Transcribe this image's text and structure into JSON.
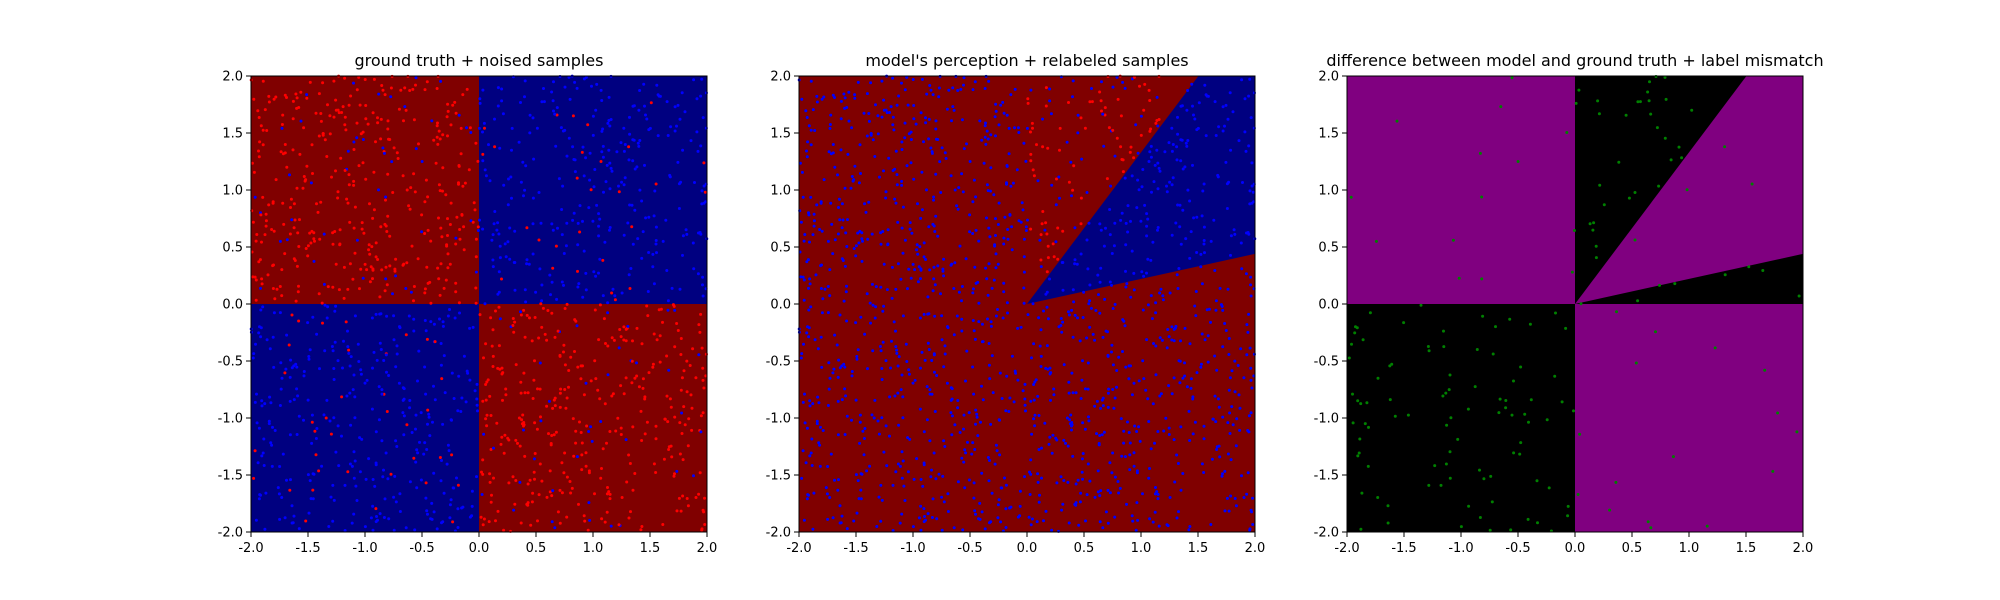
{
  "chart_data": [
    {
      "type": "scatter",
      "title": "ground truth + noised samples",
      "xlim": [
        -2.0,
        2.0
      ],
      "ylim": [
        -2.0,
        2.0
      ],
      "xticks": [
        "-2.0",
        "-1.5",
        "-1.0",
        "-0.5",
        "0.0",
        "0.5",
        "1.0",
        "1.5",
        "2.0"
      ],
      "yticks": [
        "-2.0",
        "-1.5",
        "-1.0",
        "-0.5",
        "0.0",
        "0.5",
        "1.0",
        "1.5",
        "2.0"
      ],
      "grid": false,
      "background_regions": [
        {
          "region": "x<0, y>0",
          "color": "#800000"
        },
        {
          "region": "x>0, y>0",
          "color": "#000080"
        },
        {
          "region": "x<0, y<0",
          "color": "#000080"
        },
        {
          "region": "x>0, y<0",
          "color": "#800000"
        }
      ],
      "point_colors": {
        "positive": "#ff0000",
        "negative": "#0000ff"
      },
      "points_note": "approximately 1500 uniformly spread samples; labels mostly match region class with noise",
      "approx_point_count": 1500
    },
    {
      "type": "scatter",
      "title": "model's perception + relabeled samples",
      "xlim": [
        -2.0,
        2.0
      ],
      "ylim": [
        -2.0,
        2.0
      ],
      "xticks": [
        "-2.0",
        "-1.5",
        "-1.0",
        "-0.5",
        "0.0",
        "0.5",
        "1.0",
        "1.5",
        "2.0"
      ],
      "yticks": [
        "-2.0",
        "-1.5",
        "-1.0",
        "-0.5",
        "0.0",
        "0.5",
        "1.0",
        "1.5",
        "2.0"
      ],
      "grid": false,
      "background_regions": [
        {
          "region": "outside wedge",
          "color": "#800000"
        },
        {
          "region": "wedge between slope 0.22 and slope 1.33 (x>0)",
          "color": "#000080"
        }
      ],
      "wedge_slopes": [
        0.22,
        1.33
      ],
      "point_colors": {
        "positive": "#ff0000",
        "negative": "#0000ff"
      },
      "approx_point_count": 1500
    },
    {
      "type": "scatter",
      "title": "difference between model and ground truth + label mismatch",
      "xlim": [
        -2.0,
        2.0
      ],
      "ylim": [
        -2.0,
        2.0
      ],
      "xticks": [
        "-2.0",
        "-1.5",
        "-1.0",
        "-0.5",
        "0.0",
        "0.5",
        "1.0",
        "1.5",
        "2.0"
      ],
      "yticks": [
        "-2.0",
        "-1.5",
        "-1.0",
        "-0.5",
        "0.0",
        "0.5",
        "1.0",
        "1.5",
        "2.0"
      ],
      "grid": false,
      "background_regions": [
        {
          "region": "agree",
          "color": "#800080"
        },
        {
          "region": "disagree",
          "color": "#000000"
        }
      ],
      "point_colors": {
        "mismatch": "#008000"
      },
      "approx_point_count": 400
    }
  ]
}
